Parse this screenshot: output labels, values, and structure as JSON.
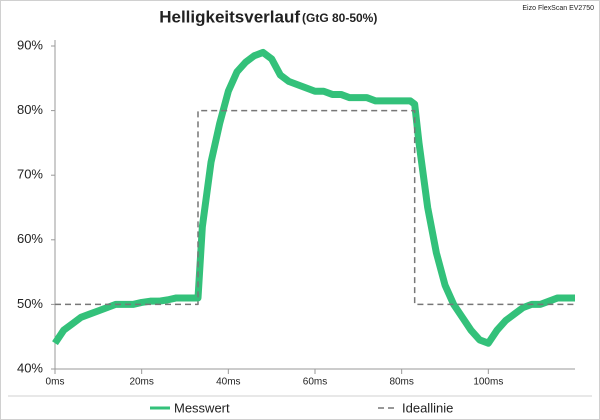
{
  "chart_data": {
    "type": "line",
    "title": "Helligkeitsverlauf",
    "subtitle": "(GtG 80-50%)",
    "note": "Eizo FlexScan EV2750",
    "xlim": [
      0,
      120
    ],
    "xticks": [
      {
        "value": 0,
        "label": "0ms"
      },
      {
        "value": 20,
        "label": "20ms"
      },
      {
        "value": 40,
        "label": "40ms"
      },
      {
        "value": 60,
        "label": "60ms"
      },
      {
        "value": 80,
        "label": "80ms"
      },
      {
        "value": 100,
        "label": "100ms"
      }
    ],
    "ylim": [
      40,
      90
    ],
    "yticks": [
      {
        "value": 40,
        "label": "40%"
      },
      {
        "value": 50,
        "label": "50%"
      },
      {
        "value": 60,
        "label": "60%"
      },
      {
        "value": 70,
        "label": "70%"
      },
      {
        "value": 80,
        "label": "80%"
      },
      {
        "value": 90,
        "label": "90%"
      }
    ],
    "grid": false,
    "legend": "bottom",
    "series": [
      {
        "name": "Messwert",
        "color": "#33c17a",
        "style": "solid",
        "x": [
          0,
          2,
          4,
          6,
          8,
          10,
          12,
          14,
          16,
          18,
          20,
          22,
          24,
          26,
          28,
          30,
          32,
          33,
          34,
          36,
          38,
          40,
          42,
          44,
          46,
          48,
          50,
          52,
          54,
          56,
          58,
          60,
          62,
          64,
          66,
          68,
          70,
          72,
          74,
          76,
          78,
          80,
          82,
          83,
          84,
          86,
          88,
          90,
          92,
          94,
          96,
          98,
          100,
          102,
          104,
          106,
          108,
          110,
          112,
          114,
          116,
          118,
          120
        ],
        "values": [
          44,
          46,
          47,
          48,
          48.5,
          49,
          49.5,
          50,
          50,
          50,
          50.3,
          50.5,
          50.5,
          50.7,
          51,
          51,
          51,
          51,
          62,
          72,
          78,
          83,
          86,
          87.5,
          88.5,
          89,
          88,
          85.5,
          84.5,
          84,
          83.5,
          83,
          83,
          82.5,
          82.5,
          82,
          82,
          82,
          81.5,
          81.5,
          81.5,
          81.5,
          81.5,
          81,
          75,
          65,
          58,
          53,
          50,
          48,
          46,
          44.5,
          44,
          46,
          47.5,
          48.5,
          49.5,
          50,
          50,
          50.5,
          51,
          51,
          51
        ]
      },
      {
        "name": "Ideallinie",
        "color": "#777777",
        "style": "dashed",
        "x": [
          0,
          33,
          33,
          83,
          83,
          120
        ],
        "values": [
          50,
          50,
          80,
          80,
          50,
          50
        ]
      }
    ]
  }
}
